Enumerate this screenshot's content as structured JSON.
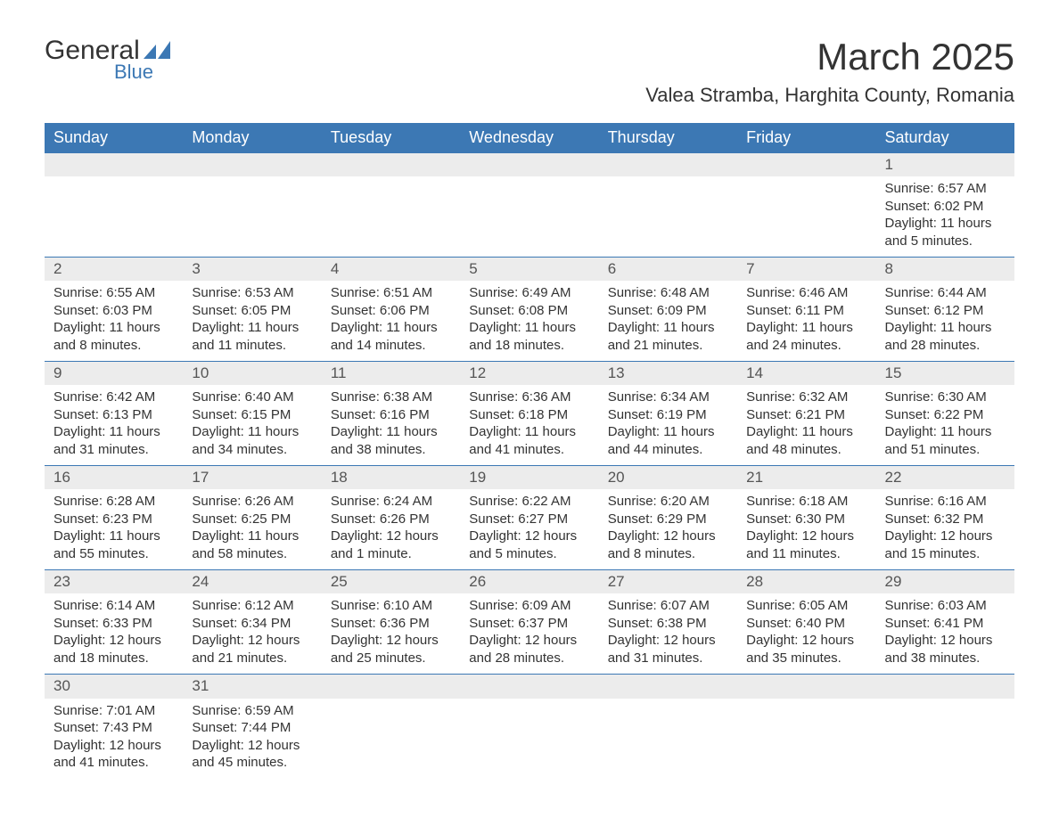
{
  "brand": {
    "name1": "General",
    "name2": "Blue",
    "mark_color": "#3c78b4"
  },
  "title": "March 2025",
  "location": "Valea Stramba, Harghita County, Romania",
  "colors": {
    "header_bg": "#3c78b4",
    "header_text": "#ffffff",
    "daynum_bg": "#ececec",
    "text": "#333333",
    "row_border": "#3c78b4"
  },
  "typography": {
    "title_fontsize": 42,
    "location_fontsize": 22,
    "weekday_fontsize": 18,
    "body_fontsize": 15
  },
  "weekdays": [
    "Sunday",
    "Monday",
    "Tuesday",
    "Wednesday",
    "Thursday",
    "Friday",
    "Saturday"
  ],
  "weeks": [
    [
      null,
      null,
      null,
      null,
      null,
      null,
      {
        "d": "1",
        "sr": "Sunrise: 6:57 AM",
        "ss": "Sunset: 6:02 PM",
        "dl1": "Daylight: 11 hours",
        "dl2": "and 5 minutes."
      }
    ],
    [
      {
        "d": "2",
        "sr": "Sunrise: 6:55 AM",
        "ss": "Sunset: 6:03 PM",
        "dl1": "Daylight: 11 hours",
        "dl2": "and 8 minutes."
      },
      {
        "d": "3",
        "sr": "Sunrise: 6:53 AM",
        "ss": "Sunset: 6:05 PM",
        "dl1": "Daylight: 11 hours",
        "dl2": "and 11 minutes."
      },
      {
        "d": "4",
        "sr": "Sunrise: 6:51 AM",
        "ss": "Sunset: 6:06 PM",
        "dl1": "Daylight: 11 hours",
        "dl2": "and 14 minutes."
      },
      {
        "d": "5",
        "sr": "Sunrise: 6:49 AM",
        "ss": "Sunset: 6:08 PM",
        "dl1": "Daylight: 11 hours",
        "dl2": "and 18 minutes."
      },
      {
        "d": "6",
        "sr": "Sunrise: 6:48 AM",
        "ss": "Sunset: 6:09 PM",
        "dl1": "Daylight: 11 hours",
        "dl2": "and 21 minutes."
      },
      {
        "d": "7",
        "sr": "Sunrise: 6:46 AM",
        "ss": "Sunset: 6:11 PM",
        "dl1": "Daylight: 11 hours",
        "dl2": "and 24 minutes."
      },
      {
        "d": "8",
        "sr": "Sunrise: 6:44 AM",
        "ss": "Sunset: 6:12 PM",
        "dl1": "Daylight: 11 hours",
        "dl2": "and 28 minutes."
      }
    ],
    [
      {
        "d": "9",
        "sr": "Sunrise: 6:42 AM",
        "ss": "Sunset: 6:13 PM",
        "dl1": "Daylight: 11 hours",
        "dl2": "and 31 minutes."
      },
      {
        "d": "10",
        "sr": "Sunrise: 6:40 AM",
        "ss": "Sunset: 6:15 PM",
        "dl1": "Daylight: 11 hours",
        "dl2": "and 34 minutes."
      },
      {
        "d": "11",
        "sr": "Sunrise: 6:38 AM",
        "ss": "Sunset: 6:16 PM",
        "dl1": "Daylight: 11 hours",
        "dl2": "and 38 minutes."
      },
      {
        "d": "12",
        "sr": "Sunrise: 6:36 AM",
        "ss": "Sunset: 6:18 PM",
        "dl1": "Daylight: 11 hours",
        "dl2": "and 41 minutes."
      },
      {
        "d": "13",
        "sr": "Sunrise: 6:34 AM",
        "ss": "Sunset: 6:19 PM",
        "dl1": "Daylight: 11 hours",
        "dl2": "and 44 minutes."
      },
      {
        "d": "14",
        "sr": "Sunrise: 6:32 AM",
        "ss": "Sunset: 6:21 PM",
        "dl1": "Daylight: 11 hours",
        "dl2": "and 48 minutes."
      },
      {
        "d": "15",
        "sr": "Sunrise: 6:30 AM",
        "ss": "Sunset: 6:22 PM",
        "dl1": "Daylight: 11 hours",
        "dl2": "and 51 minutes."
      }
    ],
    [
      {
        "d": "16",
        "sr": "Sunrise: 6:28 AM",
        "ss": "Sunset: 6:23 PM",
        "dl1": "Daylight: 11 hours",
        "dl2": "and 55 minutes."
      },
      {
        "d": "17",
        "sr": "Sunrise: 6:26 AM",
        "ss": "Sunset: 6:25 PM",
        "dl1": "Daylight: 11 hours",
        "dl2": "and 58 minutes."
      },
      {
        "d": "18",
        "sr": "Sunrise: 6:24 AM",
        "ss": "Sunset: 6:26 PM",
        "dl1": "Daylight: 12 hours",
        "dl2": "and 1 minute."
      },
      {
        "d": "19",
        "sr": "Sunrise: 6:22 AM",
        "ss": "Sunset: 6:27 PM",
        "dl1": "Daylight: 12 hours",
        "dl2": "and 5 minutes."
      },
      {
        "d": "20",
        "sr": "Sunrise: 6:20 AM",
        "ss": "Sunset: 6:29 PM",
        "dl1": "Daylight: 12 hours",
        "dl2": "and 8 minutes."
      },
      {
        "d": "21",
        "sr": "Sunrise: 6:18 AM",
        "ss": "Sunset: 6:30 PM",
        "dl1": "Daylight: 12 hours",
        "dl2": "and 11 minutes."
      },
      {
        "d": "22",
        "sr": "Sunrise: 6:16 AM",
        "ss": "Sunset: 6:32 PM",
        "dl1": "Daylight: 12 hours",
        "dl2": "and 15 minutes."
      }
    ],
    [
      {
        "d": "23",
        "sr": "Sunrise: 6:14 AM",
        "ss": "Sunset: 6:33 PM",
        "dl1": "Daylight: 12 hours",
        "dl2": "and 18 minutes."
      },
      {
        "d": "24",
        "sr": "Sunrise: 6:12 AM",
        "ss": "Sunset: 6:34 PM",
        "dl1": "Daylight: 12 hours",
        "dl2": "and 21 minutes."
      },
      {
        "d": "25",
        "sr": "Sunrise: 6:10 AM",
        "ss": "Sunset: 6:36 PM",
        "dl1": "Daylight: 12 hours",
        "dl2": "and 25 minutes."
      },
      {
        "d": "26",
        "sr": "Sunrise: 6:09 AM",
        "ss": "Sunset: 6:37 PM",
        "dl1": "Daylight: 12 hours",
        "dl2": "and 28 minutes."
      },
      {
        "d": "27",
        "sr": "Sunrise: 6:07 AM",
        "ss": "Sunset: 6:38 PM",
        "dl1": "Daylight: 12 hours",
        "dl2": "and 31 minutes."
      },
      {
        "d": "28",
        "sr": "Sunrise: 6:05 AM",
        "ss": "Sunset: 6:40 PM",
        "dl1": "Daylight: 12 hours",
        "dl2": "and 35 minutes."
      },
      {
        "d": "29",
        "sr": "Sunrise: 6:03 AM",
        "ss": "Sunset: 6:41 PM",
        "dl1": "Daylight: 12 hours",
        "dl2": "and 38 minutes."
      }
    ],
    [
      {
        "d": "30",
        "sr": "Sunrise: 7:01 AM",
        "ss": "Sunset: 7:43 PM",
        "dl1": "Daylight: 12 hours",
        "dl2": "and 41 minutes."
      },
      {
        "d": "31",
        "sr": "Sunrise: 6:59 AM",
        "ss": "Sunset: 7:44 PM",
        "dl1": "Daylight: 12 hours",
        "dl2": "and 45 minutes."
      },
      null,
      null,
      null,
      null,
      null
    ]
  ]
}
